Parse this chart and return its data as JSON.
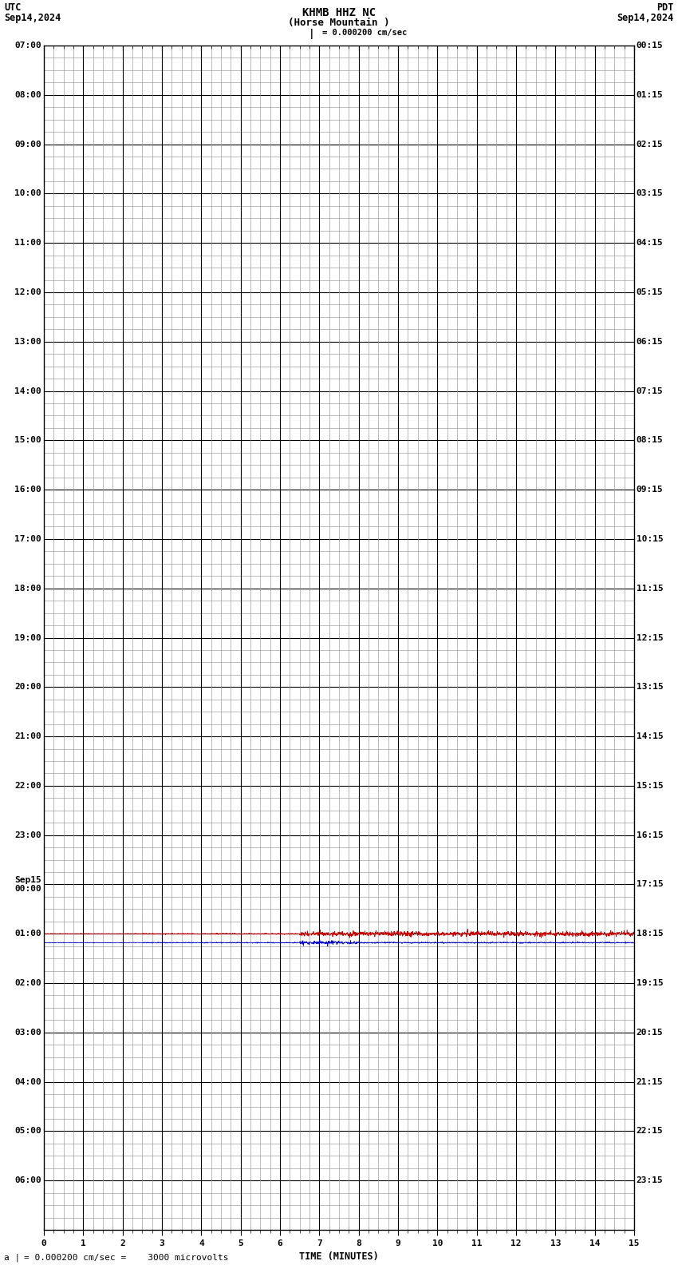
{
  "title_line1": "KHMB HHZ NC",
  "title_line2": "(Horse Mountain )",
  "scale_label": "= 0.000200 cm/sec",
  "utc_label": "UTC",
  "utc_date": "Sep14,2024",
  "pdt_label": "PDT",
  "pdt_date": "Sep14,2024",
  "xlabel": "TIME (MINUTES)",
  "footer": "= 0.000200 cm/sec =    3000 microvolts",
  "left_times": [
    "07:00",
    "08:00",
    "09:00",
    "10:00",
    "11:00",
    "12:00",
    "13:00",
    "14:00",
    "15:00",
    "16:00",
    "17:00",
    "18:00",
    "19:00",
    "20:00",
    "21:00",
    "22:00",
    "23:00",
    "Sep15\n00:00",
    "01:00",
    "02:00",
    "03:00",
    "04:00",
    "05:00",
    "06:00"
  ],
  "right_times": [
    "00:15",
    "01:15",
    "02:15",
    "03:15",
    "04:15",
    "05:15",
    "06:15",
    "07:15",
    "08:15",
    "09:15",
    "10:15",
    "11:15",
    "12:15",
    "13:15",
    "14:15",
    "15:15",
    "16:15",
    "17:15",
    "18:15",
    "19:15",
    "20:15",
    "21:15",
    "22:15",
    "23:15"
  ],
  "n_rows": 24,
  "x_min": 0,
  "x_max": 15,
  "signal_row_red": 18,
  "signal_row_blue": 18,
  "signal_color_1": "#cc0000",
  "signal_color_2": "#0000cc",
  "bg_color": "#ffffff",
  "grid_major_color": "#000000",
  "grid_minor_color": "#888888",
  "text_color": "#000000",
  "title_fontsize": 10,
  "label_fontsize": 8.5,
  "tick_fontsize": 8,
  "footer_fontsize": 8
}
